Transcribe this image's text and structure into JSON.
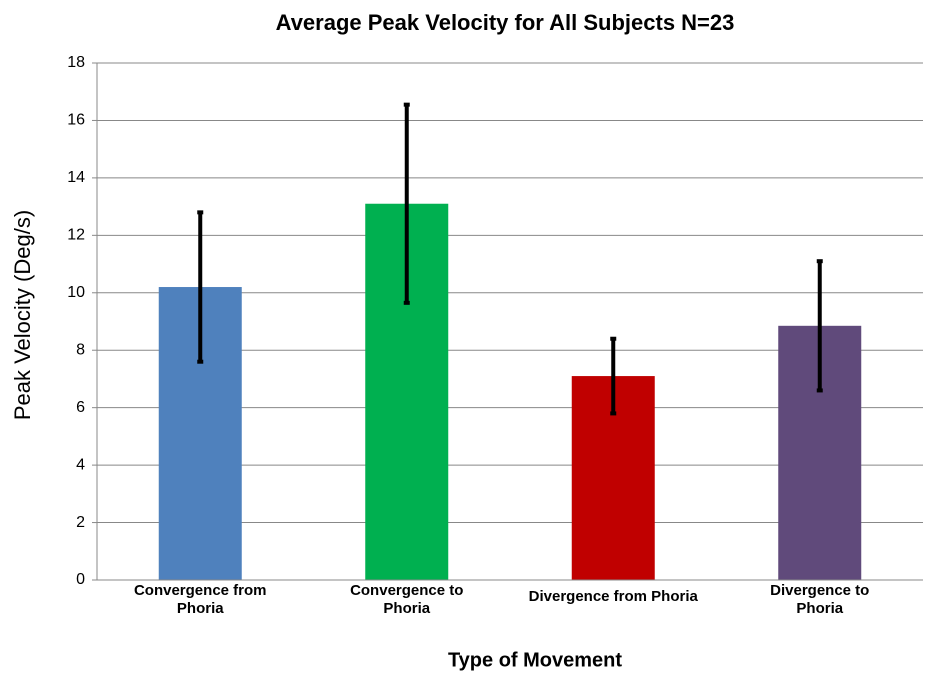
{
  "chart_data": {
    "type": "bar",
    "title": "Average Peak Velocity for All Subjects N=23",
    "x_label": "Type of Movement",
    "y_label": "Peak Velocity (Deg/s)",
    "categories": [
      "Convergence from Phoria",
      "Convergence to Phoria",
      "Divergence from Phoria",
      "Divergence to Phoria"
    ],
    "values": [
      10.2,
      13.1,
      7.1,
      8.85
    ],
    "errors": [
      2.6,
      3.45,
      1.3,
      2.25
    ],
    "colors": [
      "#4f81bd",
      "#00b050",
      "#c00000",
      "#604a7b"
    ],
    "ylim": [
      0,
      18
    ],
    "yticks": [
      0,
      2,
      4,
      6,
      8,
      10,
      12,
      14,
      16,
      18
    ],
    "grid": true
  }
}
